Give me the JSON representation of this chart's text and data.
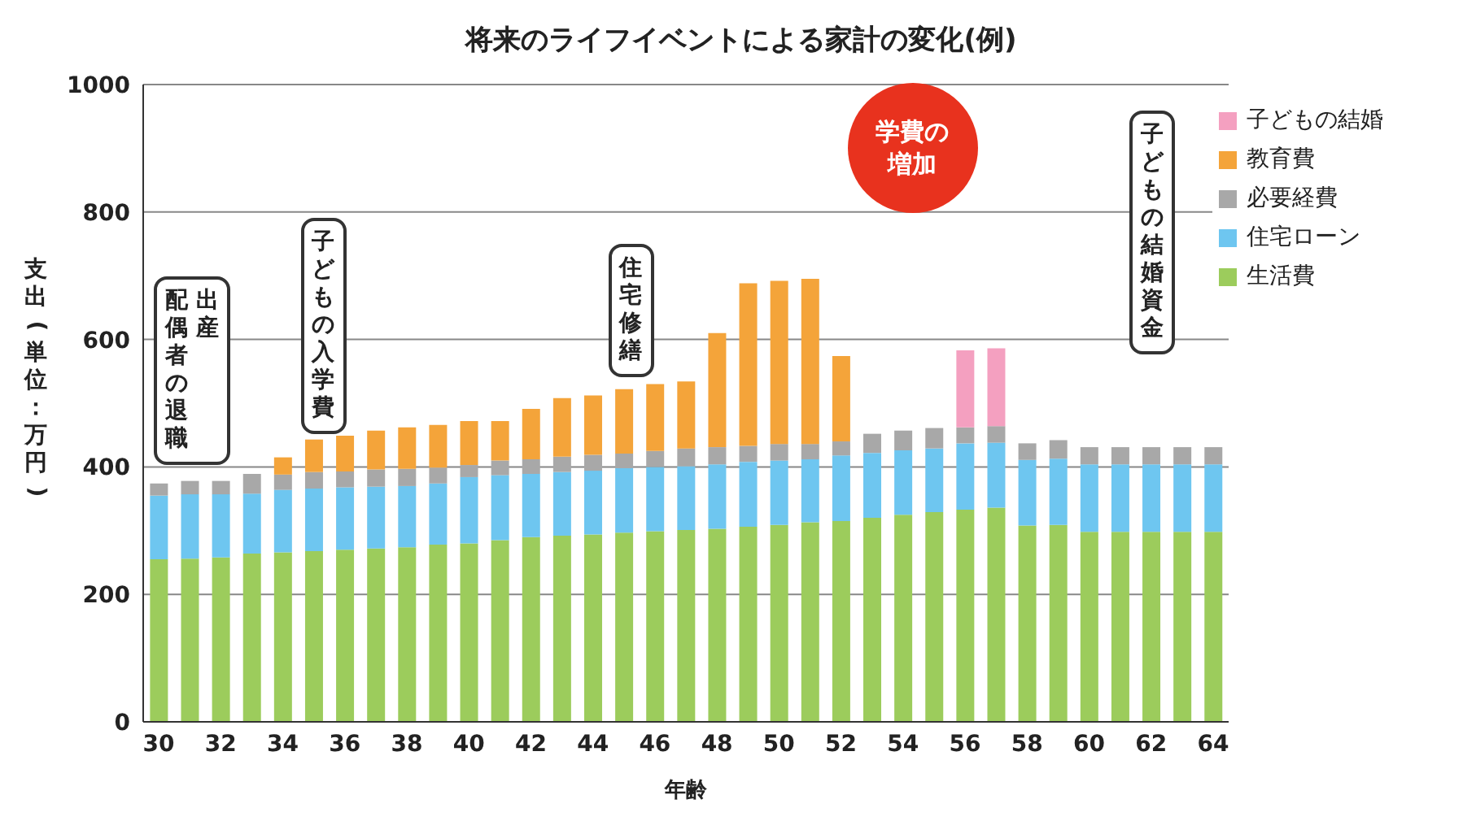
{
  "chart_data": {
    "type": "bar",
    "stacked": true,
    "title": "将来のライフイベントによる家計の変化(例)",
    "xlabel": "年齢",
    "ylabel": "支出(単位：万円)",
    "categories": [
      "30",
      null,
      "32",
      null,
      "34",
      null,
      "36",
      null,
      "38",
      null,
      "40",
      null,
      "42",
      null,
      "44",
      null,
      "46",
      null,
      "48",
      null,
      "50",
      null,
      "52",
      null,
      "54",
      null,
      "56",
      null,
      "58",
      null,
      "60",
      null,
      "62",
      null,
      "64"
    ],
    "series": [
      {
        "name": "生活費",
        "color": "#9ccc5c",
        "values": [
          255,
          256,
          258,
          264,
          266,
          268,
          270,
          272,
          274,
          278,
          280,
          285,
          290,
          292,
          294,
          297,
          299,
          301,
          303,
          306,
          309,
          313,
          315,
          320,
          325,
          329,
          333,
          336,
          308,
          309,
          298,
          298,
          298,
          298,
          298
        ]
      },
      {
        "name": "住宅ローン",
        "color": "#6ec6f0",
        "values": [
          100,
          101,
          99,
          94,
          98,
          98,
          98,
          97,
          96,
          96,
          104,
          102,
          99,
          100,
          100,
          101,
          101,
          100,
          101,
          102,
          101,
          99,
          103,
          102,
          101,
          100,
          104,
          102,
          103,
          104,
          106,
          106,
          106,
          106,
          106
        ]
      },
      {
        "name": "必要経費",
        "color": "#a8a8a8",
        "values": [
          19,
          21,
          21,
          31,
          24,
          26,
          25,
          27,
          27,
          25,
          19,
          23,
          23,
          24,
          25,
          23,
          25,
          28,
          27,
          25,
          26,
          24,
          22,
          30,
          31,
          32,
          25,
          26,
          26,
          29,
          27,
          27,
          27,
          27,
          27
        ]
      },
      {
        "name": "教育費",
        "color": "#f4a43a",
        "values": [
          null,
          null,
          null,
          null,
          27,
          51,
          56,
          61,
          65,
          67,
          69,
          62,
          79,
          92,
          93,
          101,
          105,
          105,
          179,
          255,
          256,
          259,
          134,
          null,
          null,
          null,
          null,
          null,
          null,
          null,
          null,
          null,
          null,
          null,
          null
        ]
      },
      {
        "name": "子どもの結婚",
        "color": "#f4a0c0",
        "values": [
          null,
          null,
          null,
          null,
          null,
          null,
          null,
          null,
          null,
          null,
          null,
          null,
          null,
          null,
          null,
          null,
          null,
          null,
          null,
          null,
          null,
          null,
          null,
          null,
          null,
          null,
          121,
          122,
          null,
          null,
          null,
          null,
          null,
          null,
          null
        ]
      }
    ],
    "ylim": [
      0,
      1000
    ],
    "yticks": [
      0,
      200,
      400,
      600,
      800,
      1000
    ],
    "grid": "y",
    "legend": "top right",
    "annotations": [
      "出産",
      "配偶者の退職",
      "子どもの入学費",
      "住宅修繕",
      "学費の増加",
      "子どもの結婚資金"
    ]
  }
}
